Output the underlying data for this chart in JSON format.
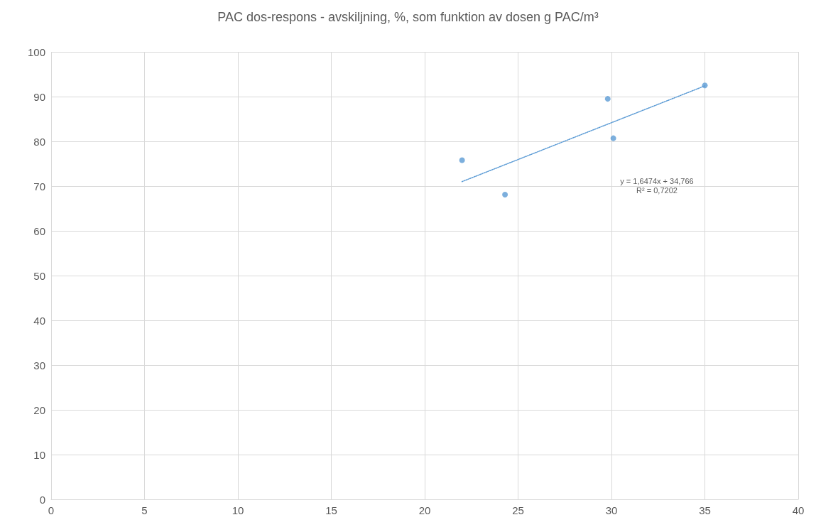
{
  "chart_data": {
    "type": "scatter",
    "title": "PAC dos-respons - avskiljning, %, som funktion av dosen g PAC/m³",
    "xlim": [
      0,
      40
    ],
    "xticks": [
      0,
      5,
      10,
      15,
      20,
      25,
      30,
      35,
      40
    ],
    "ylim": [
      0,
      100
    ],
    "yticks": [
      0,
      10,
      20,
      30,
      40,
      50,
      60,
      70,
      80,
      90,
      100
    ],
    "grid": true,
    "marker": "circle",
    "series": [
      {
        "color": "#5b9bd5",
        "x": [
          22.0,
          24.3,
          29.8,
          30.1,
          35.0
        ],
        "values": [
          75.8,
          68.1,
          89.5,
          80.7,
          92.5
        ]
      },
      {
        "type": "line",
        "color": "#5b9bd5",
        "line_style": "dotted",
        "marker": "none",
        "x": [
          22.0,
          35.0
        ],
        "values": [
          71.0,
          92.4
        ]
      }
    ],
    "annotations": [
      "y = 1,6474x + 34,766",
      "R² = 0,7202"
    ]
  }
}
